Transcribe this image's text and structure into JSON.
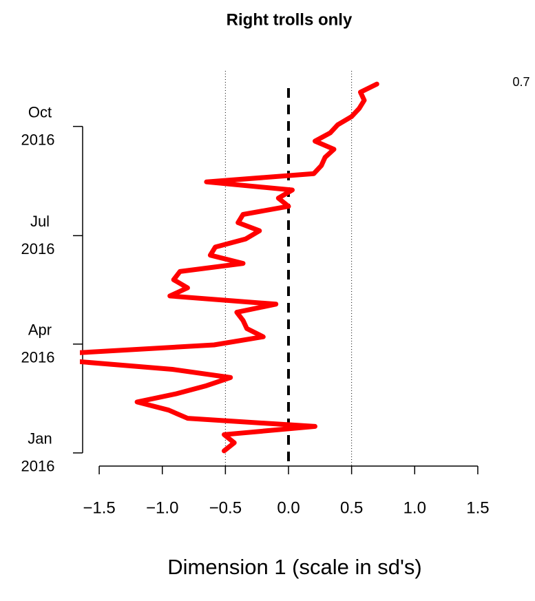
{
  "chart_data": {
    "type": "line",
    "orientation": "vertical",
    "title": "Right trolls only",
    "x_label": "Dimension 1 (scale in sd's)",
    "annotation": "0.7",
    "color": "#ff0000",
    "values": [
      -0.51,
      -0.43,
      -0.51,
      0.21,
      -0.8,
      -0.95,
      -1.2,
      -0.89,
      -0.65,
      -0.46,
      -0.92,
      -1.7,
      -1.7,
      -0.59,
      -0.2,
      -0.33,
      -0.36,
      -0.41,
      -0.1,
      -0.94,
      -0.8,
      -0.91,
      -0.86,
      -0.36,
      -0.62,
      -0.58,
      -0.34,
      -0.23,
      -0.4,
      -0.36,
      0,
      -0.08,
      0.03,
      -0.65,
      0.2,
      0.26,
      0.29,
      0.36,
      0.21,
      0.33,
      0.39,
      0.5,
      0.56,
      0.6,
      0.57,
      0.7
    ],
    "xlim": [
      -1.65,
      1.65
    ],
    "xticks": [
      {
        "value": -1.5,
        "label": "−1.5"
      },
      {
        "value": -1,
        "label": "−1.0"
      },
      {
        "value": -0.5,
        "label": "−0.5"
      },
      {
        "value": 0,
        "label": "0.0"
      },
      {
        "value": 0.5,
        "label": "0.5"
      },
      {
        "value": 1,
        "label": "1.0"
      },
      {
        "value": 1.5,
        "label": "1.5"
      }
    ],
    "ylim": [
      -0.85,
      45.85
    ],
    "yticks": [
      {
        "value": -0.25,
        "label": [
          "Jan",
          "2016"
        ]
      },
      {
        "value": 13.1,
        "label": [
          "Apr",
          "2016"
        ]
      },
      {
        "value": 26.4,
        "label": [
          "Jul",
          "2016"
        ]
      },
      {
        "value": 39.8,
        "label": [
          "Oct",
          "2016"
        ]
      }
    ],
    "reference_lines": [
      {
        "value": -0.5,
        "style": "dotted"
      },
      {
        "value": 0,
        "style": "dashed"
      },
      {
        "value": 0.5,
        "style": "dotted"
      }
    ]
  }
}
